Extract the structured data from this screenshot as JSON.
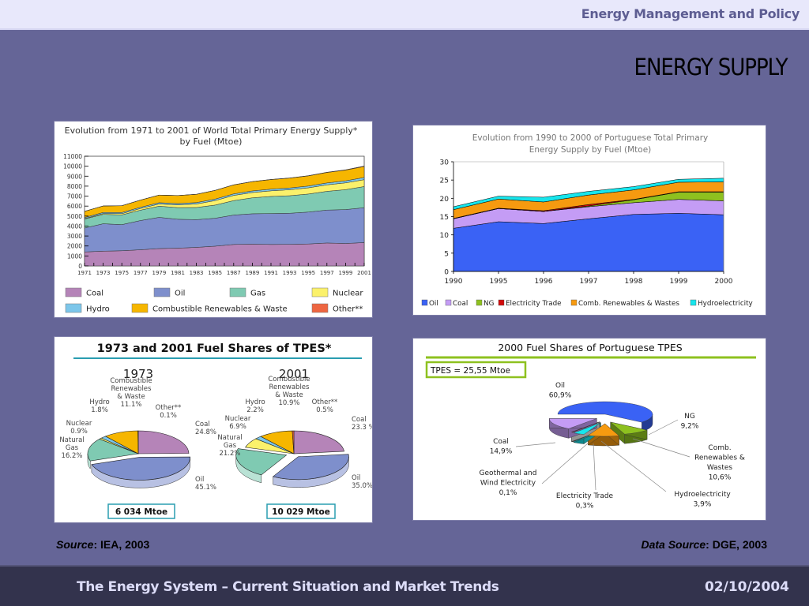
{
  "header": {
    "org_title": "Energy Management and Policy",
    "slide_title": "ENERGY SUPPLY"
  },
  "sources": {
    "left_label": "Source",
    "left_value": ": IEA, 2003",
    "right_label": "Data Source",
    "right_value": ": DGE, 2003"
  },
  "footer": {
    "title": "The Energy System – Current Situation and Market Trends",
    "date": "02/10/2004"
  },
  "chart_data": [
    {
      "id": "world-tpes-evolution",
      "type": "area",
      "stacked": true,
      "title": "Evolution from 1971 to 2001 of World Total Primary Energy Supply* by Fuel (Mtoe)",
      "title_lines": [
        "Evolution from 1971 to 2001 of World Total Primary Energy Supply*",
        "by Fuel (Mtoe)"
      ],
      "xlabel": "",
      "ylabel": "",
      "ylim": [
        0,
        11000
      ],
      "yticks": [
        0,
        1000,
        2000,
        3000,
        4000,
        5000,
        6000,
        7000,
        8000,
        9000,
        10000,
        11000
      ],
      "xtick_labels": [
        "1971",
        "1973",
        "1975",
        "1977",
        "1979",
        "1981",
        "1983",
        "1985",
        "1987",
        "1989",
        "1991",
        "1993",
        "1995",
        "1997",
        "1999",
        "2001"
      ],
      "x": [
        1971,
        1973,
        1975,
        1977,
        1979,
        1981,
        1983,
        1985,
        1987,
        1989,
        1991,
        1993,
        1995,
        1997,
        1999,
        2001
      ],
      "series": [
        {
          "name": "Coal",
          "color": "#b584b8",
          "values": [
            1400,
            1480,
            1520,
            1620,
            1740,
            1780,
            1860,
            1980,
            2150,
            2180,
            2150,
            2160,
            2200,
            2300,
            2250,
            2340
          ]
        },
        {
          "name": "Oil",
          "color": "#7e8fcc",
          "values": [
            2400,
            2750,
            2620,
            2930,
            3130,
            2900,
            2780,
            2800,
            2950,
            3050,
            3100,
            3120,
            3200,
            3300,
            3400,
            3500
          ]
        },
        {
          "name": "Gas",
          "color": "#7fcab2",
          "values": [
            900,
            940,
            980,
            1040,
            1120,
            1170,
            1220,
            1320,
            1450,
            1600,
            1720,
            1760,
            1810,
            1880,
            2000,
            2120
          ]
        },
        {
          "name": "Nuclear",
          "color": "#fbf16b",
          "values": [
            50,
            80,
            120,
            170,
            220,
            270,
            350,
            450,
            520,
            530,
            560,
            600,
            620,
            650,
            680,
            690
          ]
        },
        {
          "name": "Hydro",
          "color": "#7cc6ea",
          "values": [
            100,
            110,
            115,
            120,
            130,
            135,
            140,
            150,
            155,
            160,
            170,
            175,
            180,
            190,
            200,
            220
          ]
        },
        {
          "name": "Combustible Renewables & Waste",
          "color": "#f6b600",
          "values": [
            620,
            650,
            680,
            720,
            760,
            800,
            830,
            870,
            900,
            930,
            960,
            990,
            1020,
            1050,
            1080,
            1100
          ]
        },
        {
          "name": "Other**",
          "color": "#ee6641",
          "values": [
            6,
            6,
            7,
            7,
            8,
            8,
            9,
            10,
            12,
            14,
            15,
            17,
            20,
            25,
            30,
            50
          ]
        }
      ],
      "legend": {
        "placement": "bottom",
        "entries": [
          "Coal",
          "Oil",
          "Gas",
          "Nuclear",
          "Hydro",
          "Combustible Renewables & Waste",
          "Other**"
        ]
      },
      "grid": false
    },
    {
      "id": "portugal-tpes-evolution",
      "type": "area",
      "stacked": true,
      "title": "Evolution from 1990 to 2000 of Portuguese Total Primary Energy Supply by Fuel (Mtoe)",
      "title_lines": [
        "Evolution from 1990 to 2000 of Portuguese Total Primary",
        "Energy Supply by Fuel (Mtoe)"
      ],
      "xlabel": "",
      "ylabel": "",
      "ylim": [
        0,
        30
      ],
      "yticks": [
        0,
        5,
        10,
        15,
        20,
        25,
        30
      ],
      "categories": [
        "1990",
        "1995",
        "1996",
        "1997",
        "1998",
        "1999",
        "2000"
      ],
      "series": [
        {
          "name": "Oil",
          "color": "#3a62f5",
          "values": [
            11.8,
            13.6,
            13.1,
            14.4,
            15.6,
            15.9,
            15.5
          ]
        },
        {
          "name": "Coal",
          "color": "#c49cf5",
          "values": [
            2.6,
            3.6,
            3.3,
            3.3,
            3.2,
            3.8,
            3.8
          ]
        },
        {
          "name": "NG",
          "color": "#8ec11f",
          "values": [
            0,
            0,
            0,
            0.2,
            0.8,
            2.0,
            2.4
          ]
        },
        {
          "name": "Electricity Trade",
          "color": "#d10a0a",
          "values": [
            0.1,
            0.1,
            0.2,
            0.4,
            0.1,
            0.1,
            0.1
          ]
        },
        {
          "name": "Comb. Renewables & Wastes",
          "color": "#f69a10",
          "values": [
            2.4,
            2.5,
            2.4,
            2.6,
            2.6,
            2.6,
            2.7
          ]
        },
        {
          "name": "Hydroelectricity",
          "color": "#17e5ec",
          "values": [
            0.8,
            0.8,
            1.3,
            1.0,
            0.9,
            0.8,
            1.0
          ]
        }
      ],
      "legend": {
        "placement": "bottom",
        "entries": [
          "Oil",
          "Coal",
          "NG",
          "Electricity Trade",
          "Comb. Renewables & Wastes",
          "Hydroelectricity"
        ]
      },
      "grid": false
    },
    {
      "id": "world-fuel-shares",
      "type": "pie",
      "title": "1973 and 2001 Fuel Shares of TPES*",
      "pies": [
        {
          "title": "1973",
          "total_label": "6 034 Mtoe",
          "slices": [
            {
              "name": "Coal",
              "label_lines": [
                "Coal",
                "24.8%"
              ],
              "value": 24.8,
              "color": "#b584b8"
            },
            {
              "name": "Oil",
              "label_lines": [
                "Oil",
                "45.1%"
              ],
              "value": 45.1,
              "color": "#7e8fcc",
              "exploded": true
            },
            {
              "name": "Natural Gas",
              "label_lines": [
                "Natural",
                "Gas",
                "16.2%"
              ],
              "value": 16.2,
              "color": "#7fcab2"
            },
            {
              "name": "Nuclear",
              "label_lines": [
                "Nuclear",
                "0.9%"
              ],
              "value": 0.9,
              "color": "#fbf16b"
            },
            {
              "name": "Hydro",
              "label_lines": [
                "Hydro",
                "1.8%"
              ],
              "value": 1.8,
              "color": "#7cc6ea"
            },
            {
              "name": "Combustible Renewables & Waste",
              "label_lines": [
                "Combustible",
                "Renewables",
                "& Waste",
                "11.1%"
              ],
              "value": 11.1,
              "color": "#f6b600"
            },
            {
              "name": "Other**",
              "label_lines": [
                "Other**",
                "0.1%"
              ],
              "value": 0.1,
              "color": "#ee6641"
            }
          ]
        },
        {
          "title": "2001",
          "total_label": "10 029 Mtoe",
          "slices": [
            {
              "name": "Coal",
              "label_lines": [
                "Coal",
                "23.3 %"
              ],
              "value": 23.3,
              "color": "#b584b8"
            },
            {
              "name": "Oil",
              "label_lines": [
                "Oil",
                "35.0%"
              ],
              "value": 35.0,
              "color": "#7e8fcc",
              "exploded": true
            },
            {
              "name": "Natural Gas",
              "label_lines": [
                "Natural",
                "Gas",
                "21.2%"
              ],
              "value": 21.2,
              "color": "#7fcab2",
              "exploded": true
            },
            {
              "name": "Nuclear",
              "label_lines": [
                "Nuclear",
                "6.9%"
              ],
              "value": 6.9,
              "color": "#fbf16b"
            },
            {
              "name": "Hydro",
              "label_lines": [
                "Hydro",
                "2.2%"
              ],
              "value": 2.2,
              "color": "#7cc6ea"
            },
            {
              "name": "Combustible Renewables & Waste",
              "label_lines": [
                "Combustible",
                "Renewables",
                "& Waste",
                "10.9%"
              ],
              "value": 10.9,
              "color": "#f6b600"
            },
            {
              "name": "Other**",
              "label_lines": [
                "Other**",
                "0.5%"
              ],
              "value": 0.5,
              "color": "#ee6641"
            }
          ]
        }
      ]
    },
    {
      "id": "portugal-fuel-shares-2000",
      "type": "pie",
      "title": "2000 Fuel Shares of Portuguese TPES",
      "total_label": "TPES = 25,55 Mtoe",
      "slices": [
        {
          "name": "Oil",
          "label_lines": [
            "Oil",
            "60,9%"
          ],
          "value": 60.9,
          "color": "#3a62f5"
        },
        {
          "name": "NG",
          "label_lines": [
            "NG",
            "9,2%"
          ],
          "value": 9.2,
          "color": "#8ec11f"
        },
        {
          "name": "Comb. Renewables & Wastes",
          "label_lines": [
            "Comb.",
            "Renewables &",
            "Wastes",
            "10,6%"
          ],
          "value": 10.6,
          "color": "#f69a10"
        },
        {
          "name": "Hydroelectricity",
          "label_lines": [
            "Hydroelectricity",
            "3,9%"
          ],
          "value": 3.9,
          "color": "#17e5ec"
        },
        {
          "name": "Electricity Trade",
          "label_lines": [
            "Electricity Trade",
            "0,3%"
          ],
          "value": 0.3,
          "color": "#d10a0a"
        },
        {
          "name": "Geothermal and Wind Electricity",
          "label_lines": [
            "Geothermal and",
            "Wind Electricity",
            "0,1%"
          ],
          "value": 0.1,
          "color": "#e4e4e4"
        },
        {
          "name": "Coal",
          "label_lines": [
            "Coal",
            "14,9%"
          ],
          "value": 14.9,
          "color": "#c49cf5"
        }
      ]
    }
  ]
}
